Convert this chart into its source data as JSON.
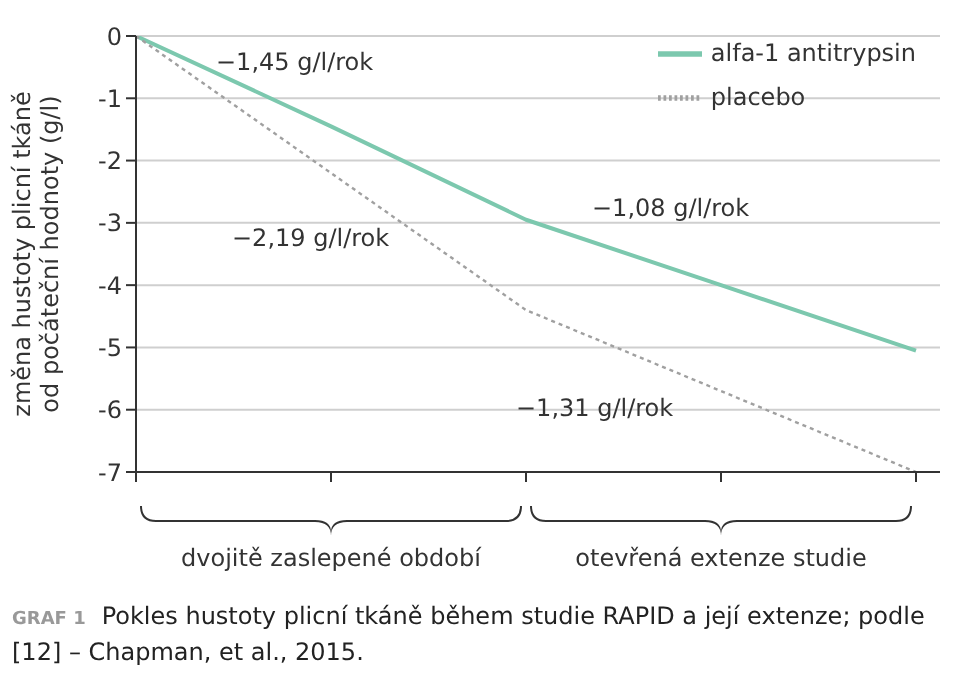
{
  "chart_data": {
    "type": "line",
    "ylabel": "změna hustoty plicní tkáně od počáteční hodnoty (g/l)",
    "categories": [
      null,
      null,
      null,
      null,
      null
    ],
    "ylim": [
      -7,
      0
    ],
    "yticks": [
      -7,
      -6,
      -5,
      -4,
      -3,
      -2,
      -1,
      0
    ],
    "tick_labels": "y",
    "grid": "y",
    "legend": "top right",
    "marker": "none",
    "series": [
      {
        "name": "alfa-1 antitrypsin",
        "color": "#7cc8ae",
        "values": [
          0,
          -1.45,
          -2.95,
          -4.0,
          -5.05
        ],
        "line_style": "solid"
      },
      {
        "name": "placebo",
        "color": "#a0a0a0",
        "values": [
          0,
          -2.2,
          -4.4,
          -5.7,
          -7.0
        ],
        "line_style": "dotted"
      }
    ],
    "annotations": [
      "−1,45 g/l/rok",
      "−2,19 g/l/rok",
      "−1,08 g/l/rok",
      "−1,31 g/l/rok",
      "dvojitě zaslepené období",
      "otevřená extenze studie",
      "GRAF 1",
      "Pokles hustoty plicní tkáně během studie RAPID a její extenze; podle [12] – Chapman, et al., 2015."
    ]
  }
}
